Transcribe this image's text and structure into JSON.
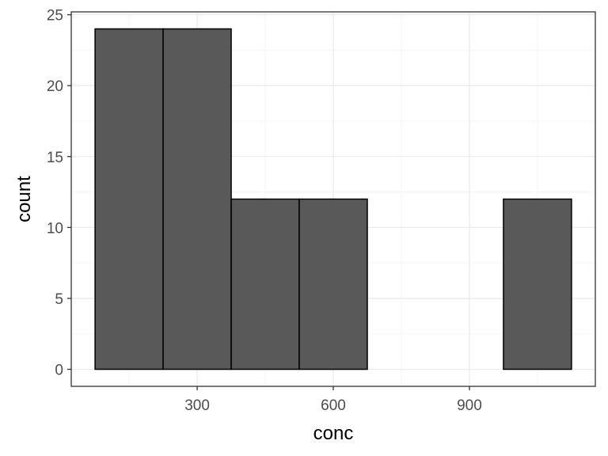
{
  "chart_data": {
    "type": "bar",
    "subtype": "histogram",
    "title": "",
    "xlabel": "conc",
    "ylabel": "count",
    "bins": [
      {
        "x0": 75,
        "x1": 225,
        "count": 24
      },
      {
        "x0": 225,
        "x1": 375,
        "count": 24
      },
      {
        "x0": 375,
        "x1": 525,
        "count": 12
      },
      {
        "x0": 525,
        "x1": 675,
        "count": 12
      },
      {
        "x0": 675,
        "x1": 825,
        "count": 0
      },
      {
        "x0": 825,
        "x1": 975,
        "count": 0
      },
      {
        "x0": 975,
        "x1": 1125,
        "count": 12
      }
    ],
    "xlim": [
      22.5,
      1177.5
    ],
    "ylim": [
      -1.2,
      25.2
    ],
    "x_ticks": [
      300,
      600,
      900
    ],
    "x_tick_labels": [
      "300",
      "600",
      "900"
    ],
    "y_ticks": [
      0,
      5,
      10,
      15,
      20,
      25
    ],
    "y_tick_labels": [
      "0",
      "5",
      "10",
      "15",
      "20",
      "25"
    ],
    "grid": true,
    "theme": "bw",
    "colors": {
      "bar_fill": "#595959",
      "bar_outline": "#000000",
      "grid_major": "#ebebeb",
      "grid_minor": "#f5f5f5",
      "panel_border": "#333333"
    }
  }
}
